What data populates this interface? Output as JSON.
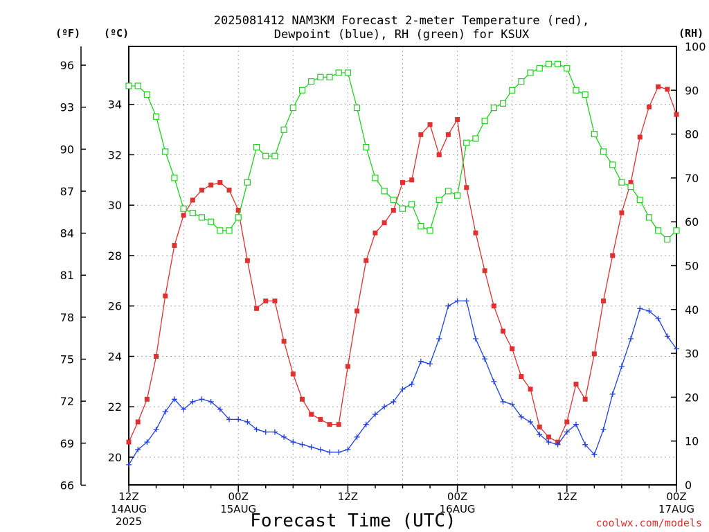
{
  "chart_data": {
    "type": "line",
    "title_lines": [
      "2025081412 NAM3KM Forecast 2-meter Temperature (red),",
      "Dewpoint (blue), RH (green) for KSUX"
    ],
    "units": {
      "fahrenheit": "(ºF)",
      "celsius": "(ºC)",
      "rh": "(RH)"
    },
    "xlabel": "Forecast Time (UTC)",
    "credit": "coolwx.com/models",
    "x_ticks": [
      {
        "hour": 0,
        "lines": [
          "12Z",
          "14AUG",
          "2025"
        ]
      },
      {
        "hour": 12,
        "lines": [
          "00Z",
          "15AUG"
        ]
      },
      {
        "hour": 24,
        "lines": [
          "12Z"
        ]
      },
      {
        "hour": 36,
        "lines": [
          "00Z",
          "16AUG"
        ]
      },
      {
        "hour": 48,
        "lines": [
          "12Z"
        ]
      },
      {
        "hour": 60,
        "lines": [
          "00Z",
          "17AUG"
        ]
      }
    ],
    "x_range_hours": [
      0,
      60
    ],
    "y_left_f_ticks": [
      "96",
      "93",
      "90",
      "87",
      "84",
      "81",
      "78",
      "75",
      "72",
      "69",
      "66"
    ],
    "y_left_c_ticks": [
      "34",
      "32",
      "30",
      "28",
      "26",
      "24",
      "22",
      "20"
    ],
    "y_left_c_range": [
      18.9,
      36.3
    ],
    "y_right_rh_ticks": [
      "100",
      "90",
      "80",
      "70",
      "60",
      "50",
      "40",
      "30",
      "20",
      "10",
      "0"
    ],
    "y_right_rh_range": [
      0,
      100
    ],
    "grid": true,
    "colors": {
      "temperature": "#e03030",
      "dewpoint": "#2040e0",
      "rh": "#20d020"
    },
    "series": [
      {
        "name": "Temperature (red)",
        "axis": "celsius",
        "marker": "filled-square",
        "x": [
          0,
          1,
          2,
          3,
          4,
          5,
          6,
          7,
          8,
          9,
          10,
          11,
          12,
          13,
          14,
          15,
          16,
          17,
          18,
          19,
          20,
          21,
          22,
          23,
          24,
          25,
          26,
          27,
          28,
          29,
          30,
          31,
          32,
          33,
          34,
          35,
          36,
          37,
          38,
          39,
          40,
          41,
          42,
          43,
          44,
          45,
          46,
          47,
          48,
          49,
          50,
          51,
          52,
          53,
          54,
          55,
          56,
          57,
          58,
          59,
          60
        ],
        "values": [
          20.6,
          21.4,
          22.3,
          24.0,
          26.4,
          28.4,
          29.6,
          30.2,
          30.6,
          30.8,
          30.9,
          30.6,
          29.8,
          27.8,
          25.9,
          26.2,
          26.2,
          24.6,
          23.3,
          22.3,
          21.7,
          21.5,
          21.3,
          21.3,
          23.6,
          25.8,
          27.8,
          28.9,
          29.3,
          29.8,
          30.9,
          31.0,
          32.8,
          33.2,
          32.0,
          32.8,
          33.4,
          30.7,
          28.9,
          27.4,
          26.0,
          25.0,
          24.3,
          23.2,
          22.7,
          21.2,
          20.8,
          20.6,
          21.4,
          22.9,
          22.3,
          24.1,
          26.2,
          28.0,
          29.7,
          30.9,
          32.7,
          33.9,
          34.7,
          34.6,
          33.6
        ]
      },
      {
        "name": "Dewpoint (blue)",
        "axis": "celsius",
        "marker": "plus",
        "x": [
          0,
          1,
          2,
          3,
          4,
          5,
          6,
          7,
          8,
          9,
          10,
          11,
          12,
          13,
          14,
          15,
          16,
          17,
          18,
          19,
          20,
          21,
          22,
          23,
          24,
          25,
          26,
          27,
          28,
          29,
          30,
          31,
          32,
          33,
          34,
          35,
          36,
          37,
          38,
          39,
          40,
          41,
          42,
          43,
          44,
          45,
          46,
          47,
          48,
          49,
          50,
          51,
          52,
          53,
          54,
          55,
          56,
          57,
          58,
          59,
          60
        ],
        "values": [
          19.7,
          20.3,
          20.6,
          21.1,
          21.8,
          22.3,
          21.9,
          22.2,
          22.3,
          22.2,
          21.9,
          21.5,
          21.5,
          21.4,
          21.1,
          21.0,
          21.0,
          20.8,
          20.6,
          20.5,
          20.4,
          20.3,
          20.2,
          20.2,
          20.3,
          20.8,
          21.3,
          21.7,
          22.0,
          22.2,
          22.7,
          22.9,
          23.8,
          23.7,
          24.7,
          26.0,
          26.2,
          26.2,
          24.7,
          23.9,
          23.0,
          22.2,
          22.1,
          21.6,
          21.4,
          20.9,
          20.6,
          20.5,
          21.0,
          21.3,
          20.5,
          20.1,
          21.1,
          22.5,
          23.6,
          24.7,
          25.9,
          25.8,
          25.5,
          24.8,
          24.3
        ]
      },
      {
        "name": "RH (green)",
        "axis": "rh",
        "marker": "open-square",
        "x": [
          0,
          1,
          2,
          3,
          4,
          5,
          6,
          7,
          8,
          9,
          10,
          11,
          12,
          13,
          14,
          15,
          16,
          17,
          18,
          19,
          20,
          21,
          22,
          23,
          24,
          25,
          26,
          27,
          28,
          29,
          30,
          31,
          32,
          33,
          34,
          35,
          36,
          37,
          38,
          39,
          40,
          41,
          42,
          43,
          44,
          45,
          46,
          47,
          48,
          49,
          50,
          51,
          52,
          53,
          54,
          55,
          56,
          57,
          58,
          59,
          60
        ],
        "values": [
          91,
          91,
          89,
          84,
          76,
          70,
          63,
          62,
          61,
          60,
          58,
          58,
          61,
          69,
          77,
          75,
          75,
          81,
          86,
          90,
          92,
          93,
          93,
          94,
          94,
          86,
          77,
          70,
          67,
          65,
          63,
          64,
          59,
          58,
          65,
          67,
          66,
          78,
          79,
          83,
          86,
          87,
          90,
          92,
          94,
          95,
          96,
          96,
          95,
          90,
          89,
          80,
          76,
          73,
          69,
          68,
          65,
          61,
          58,
          56,
          58
        ]
      }
    ]
  }
}
